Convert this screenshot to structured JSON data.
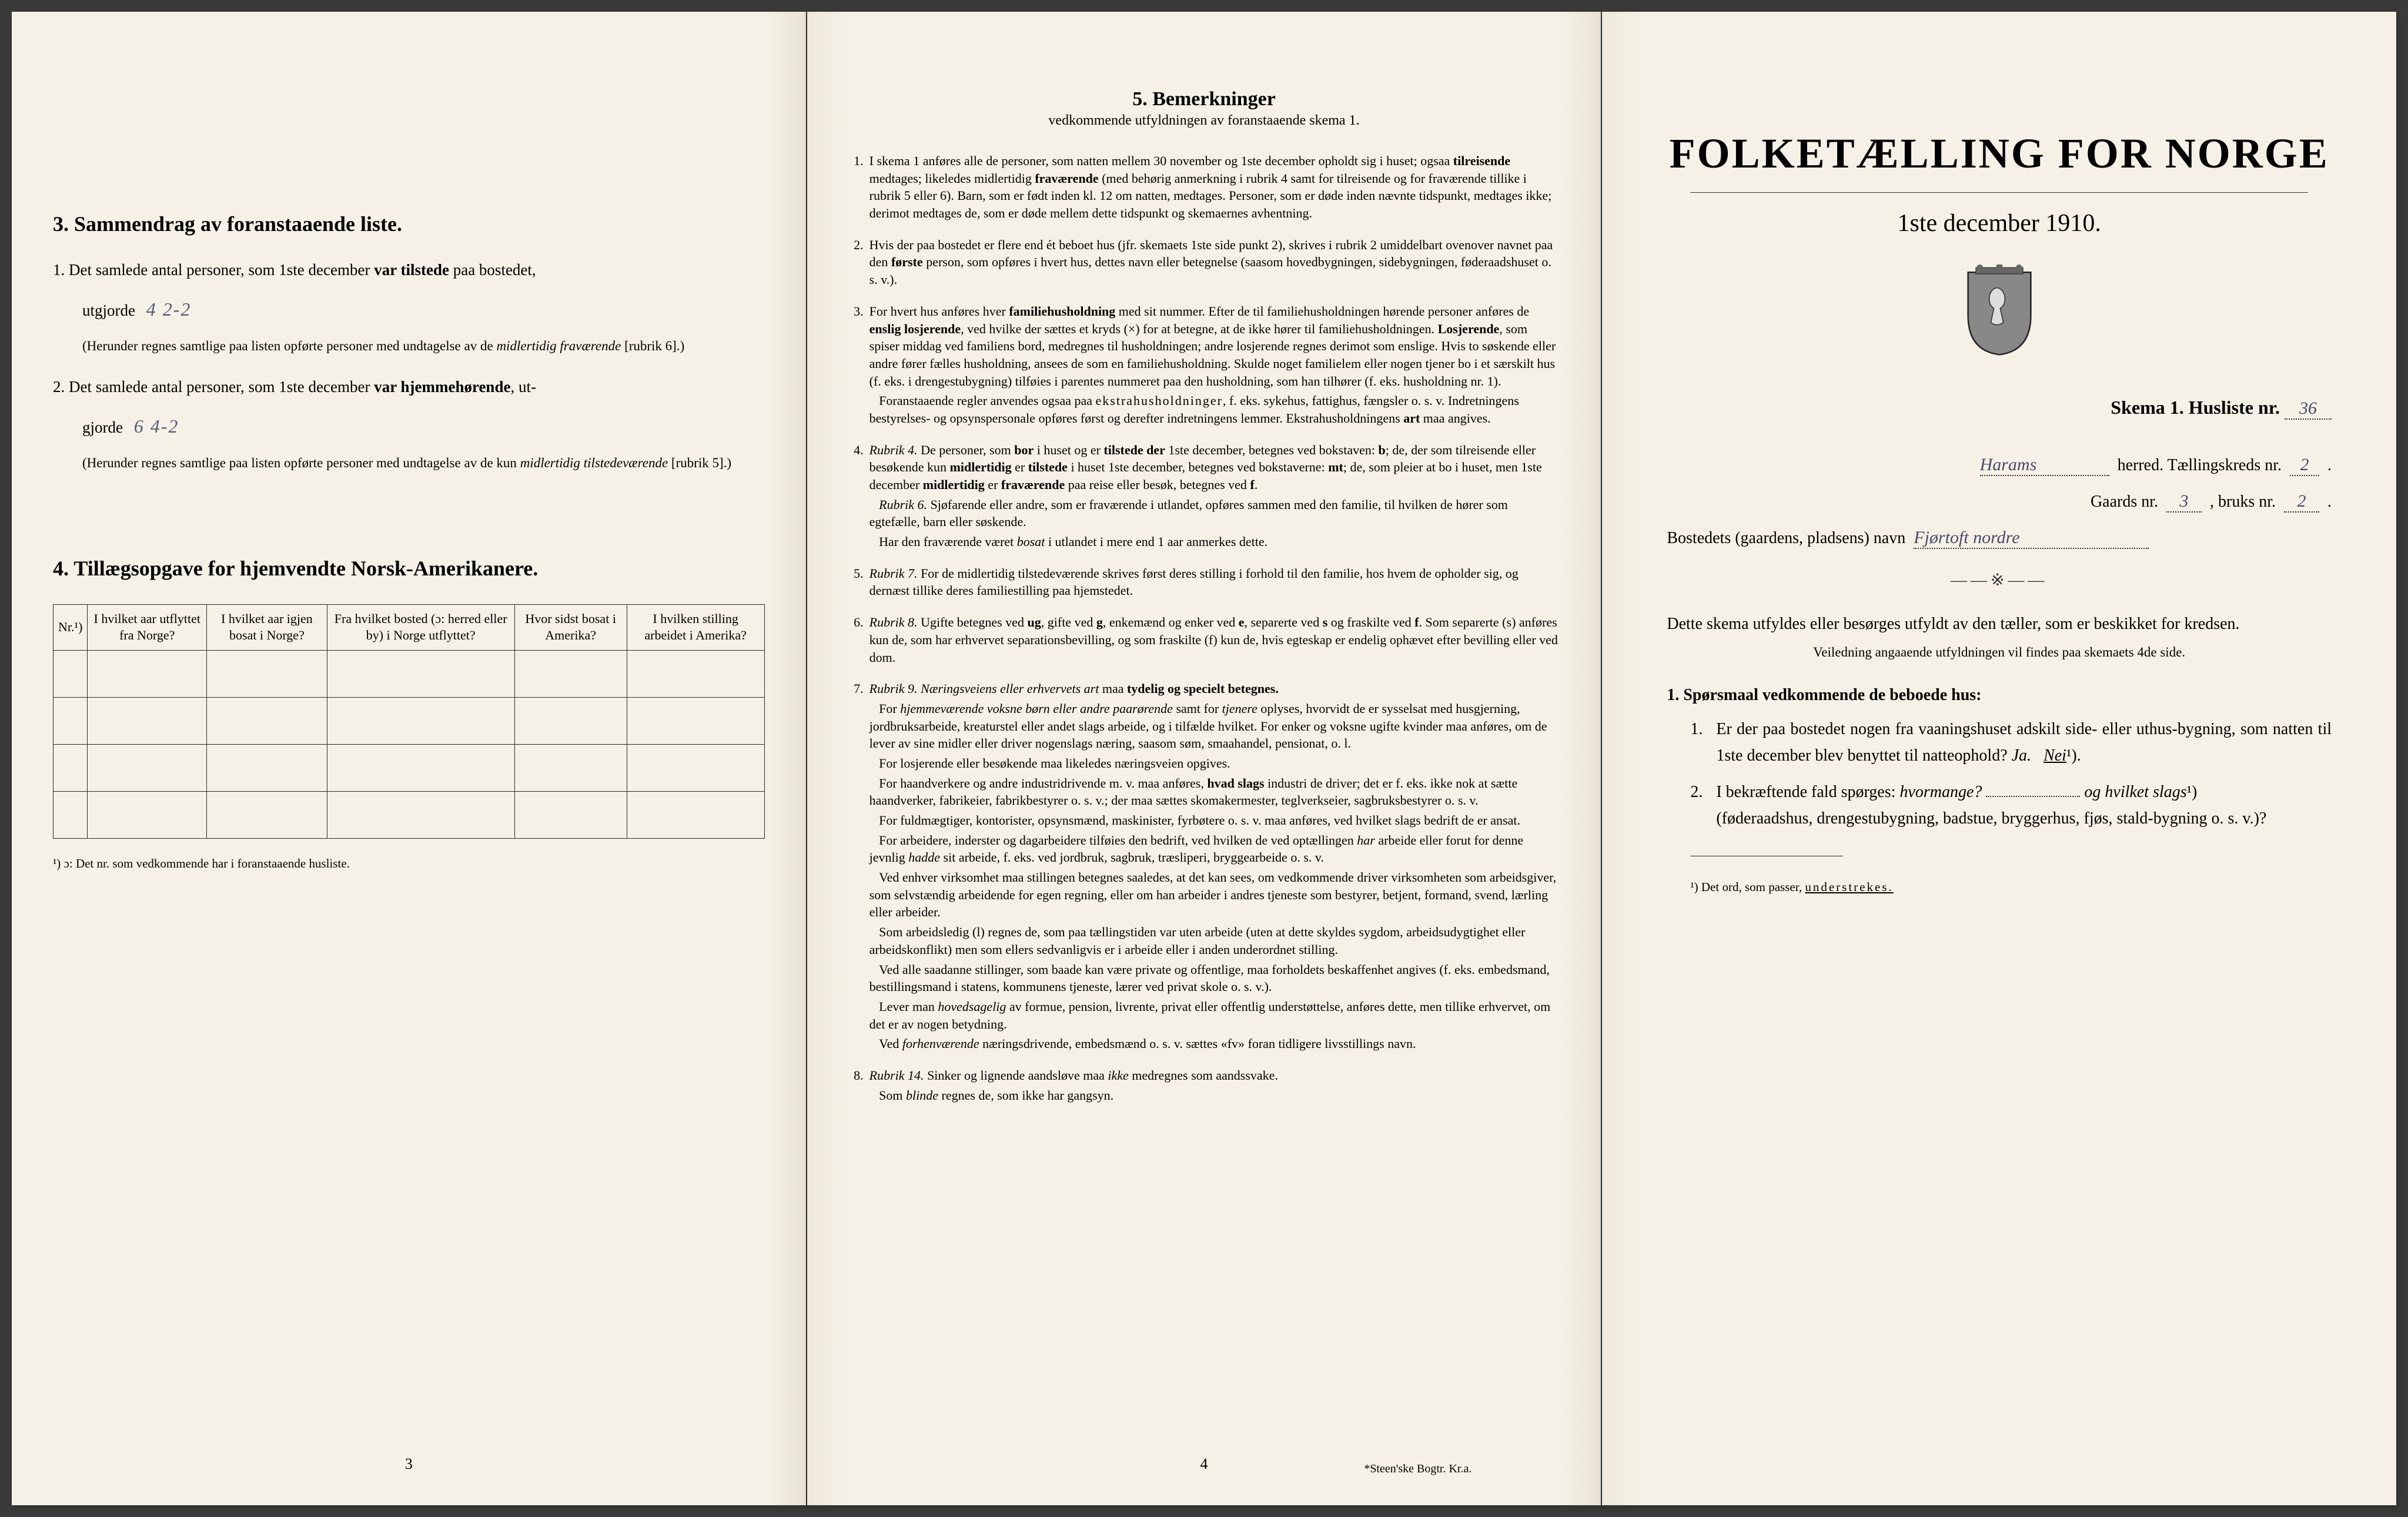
{
  "page_left": {
    "section3": {
      "title": "3.   Sammendrag av foranstaaende liste.",
      "item1_pre": "1.  Det samlede antal personer, som 1ste december ",
      "item1_bold": "var tilstede",
      "item1_post": " paa bostedet,",
      "item1_line2": "utgjorde",
      "item1_hand": "4  2-2",
      "item1_note_a": "(Herunder regnes samtlige paa listen opførte personer med undtagelse av de ",
      "item1_note_b": "midlertidig fraværende",
      "item1_note_c": " [rubrik 6].)",
      "item2_pre": "2.  Det samlede antal personer, som 1ste december ",
      "item2_bold": "var hjemmehørende",
      "item2_post": ", ut-",
      "item2_line2": "gjorde",
      "item2_hand": "6   4-2",
      "item2_note_a": "(Herunder regnes samtlige paa listen opførte personer med undtagelse av de kun ",
      "item2_note_b": "midlertidig tilstedeværende",
      "item2_note_c": " [rubrik 5].)"
    },
    "section4": {
      "title": "4.   Tillægsopgave for hjemvendte Norsk-Amerikanere.",
      "headers": [
        "Nr.¹)",
        "I hvilket aar utflyttet fra Norge?",
        "I hvilket aar igjen bosat i Norge?",
        "Fra hvilket bosted (ɔ: herred eller by) i Norge utflyttet?",
        "Hvor sidst bosat i Amerika?",
        "I hvilken stilling arbeidet i Amerika?"
      ],
      "rows": 4,
      "footnote": "¹) ɔ: Det nr. som vedkommende har i foranstaaende husliste."
    },
    "page_num": "3"
  },
  "page_mid": {
    "title": "5.   Bemerkninger",
    "subtitle": "vedkommende utfyldningen av foranstaaende skema 1.",
    "items": [
      {
        "n": "1.",
        "body": [
          "I skema 1 anføres alle de personer, som natten mellem 30 november og 1ste december opholdt sig i huset; ogsaa <b>tilreisende</b> medtages; likeledes midlertidig <b>fraværende</b> (med behørig anmerkning i rubrik 4 samt for tilreisende og for fraværende tillike i rubrik 5 eller 6). Barn, som er født inden kl. 12 om natten, medtages. Personer, som er døde inden nævnte tidspunkt, medtages ikke; derimot medtages de, som er døde mellem dette tidspunkt og skemaernes avhentning."
        ]
      },
      {
        "n": "2.",
        "body": [
          "Hvis der paa bostedet er flere end ét beboet hus (jfr. skemaets 1ste side punkt 2), skrives i rubrik 2 umiddelbart ovenover navnet paa den <b>første</b> person, som opføres i hvert hus, dettes navn eller betegnelse (saasom hovedbygningen, sidebygningen, føderaadshuset o. s. v.)."
        ]
      },
      {
        "n": "3.",
        "body": [
          "For hvert hus anføres hver <b>familiehusholdning</b> med sit nummer. Efter de til familiehusholdningen hørende personer anføres de <b>enslig losjerende</b>, ved hvilke der sættes et kryds (×) for at betegne, at de ikke hører til familiehusholdningen. <b>Losjerende</b>, som spiser middag ved familiens bord, medregnes til husholdningen; andre losjerende regnes derimot som enslige. Hvis to søskende eller andre fører fælles husholdning, ansees de som en familiehusholdning. Skulde noget familielem eller nogen tjener bo i et særskilt hus (f. eks. i drengestubygning) tilføies i parentes nummeret paa den husholdning, som han tilhører (f. eks. husholdning nr. 1).",
          "&nbsp;&nbsp;&nbsp;Foranstaaende regler anvendes ogsaa paa <span class='spaced'>ekstrahusholdninger</span>, f. eks. sykehus, fattighus, fængsler o. s. v. Indretningens bestyrelses- og opsynspersonale opføres først og derefter indretningens lemmer. Ekstrahusholdningens <b>art</b> maa angives."
        ]
      },
      {
        "n": "4.",
        "body": [
          "<i>Rubrik 4.</i> De personer, som <b>bor</b> i huset og er <b>tilstede der</b> 1ste december, betegnes ved bokstaven: <b>b</b>; de, der som tilreisende eller besøkende kun <b>midlertidig</b> er <b>tilstede</b> i huset 1ste december, betegnes ved bokstaverne: <b>mt</b>; de, som pleier at bo i huset, men 1ste december <b>midlertidig</b> er <b>fraværende</b> paa reise eller besøk, betegnes ved <b>f</b>.",
          "&nbsp;&nbsp;&nbsp;<i>Rubrik 6.</i> Sjøfarende eller andre, som er fraværende i utlandet, opføres sammen med den familie, til hvilken de hører som egtefælle, barn eller søskende.",
          "&nbsp;&nbsp;&nbsp;Har den fraværende været <i>bosat</i> i utlandet i mere end 1 aar anmerkes dette."
        ]
      },
      {
        "n": "5.",
        "body": [
          "<i>Rubrik 7.</i> For de midlertidig tilstedeværende skrives først deres stilling i forhold til den familie, hos hvem de opholder sig, og dernæst tillike deres familiestilling paa hjemstedet."
        ]
      },
      {
        "n": "6.",
        "body": [
          "<i>Rubrik 8.</i> Ugifte betegnes ved <b>ug</b>, gifte ved <b>g</b>, enkemænd og enker ved <b>e</b>, separerte ved <b>s</b> og fraskilte ved <b>f</b>. Som separerte (s) anføres kun de, som har erhvervet separationsbevilling, og som fraskilte (f) kun de, hvis egteskap er endelig ophævet efter bevilling eller ved dom."
        ]
      },
      {
        "n": "7.",
        "body": [
          "<i>Rubrik 9.</i> <i>Næringsveiens eller erhvervets art</i> maa <b>tydelig og specielt betegnes.</b>",
          "&nbsp;&nbsp;&nbsp;For <i>hjemmeværende voksne børn eller andre paarørende</i> samt for <i>tjenere</i> oplyses, hvorvidt de er sysselsat med husgjerning, jordbruksarbeide, kreaturstel eller andet slags arbeide, og i tilfælde hvilket. For enker og voksne ugifte kvinder maa anføres, om de lever av sine midler eller driver nogenslags næring, saasom søm, smaahandel, pensionat, o. l.",
          "&nbsp;&nbsp;&nbsp;For losjerende eller besøkende maa likeledes næringsveien opgives.",
          "&nbsp;&nbsp;&nbsp;For haandverkere og andre industridrivende m. v. maa anføres, <b>hvad slags</b> industri de driver; det er f. eks. ikke nok at sætte haandverker, fabrikeier, fabrikbestyrer o. s. v.; der maa sættes skomakermester, teglverkseier, sagbruksbestyrer o. s. v.",
          "&nbsp;&nbsp;&nbsp;For fuldmægtiger, kontorister, opsynsmænd, maskinister, fyrbøtere o. s. v. maa anføres, ved hvilket slags bedrift de er ansat.",
          "&nbsp;&nbsp;&nbsp;For arbeidere, inderster og dagarbeidere tilføies den bedrift, ved hvilken de ved optællingen <i>har</i> arbeide eller forut for denne jevnlig <i>hadde</i> sit arbeide, f. eks. ved jordbruk, sagbruk, træsliperi, bryggearbeide o. s. v.",
          "&nbsp;&nbsp;&nbsp;Ved enhver virksomhet maa stillingen betegnes saaledes, at det kan sees, om vedkommende driver virksomheten som arbeidsgiver, som selvstændig arbeidende for egen regning, eller om han arbeider i andres tjeneste som bestyrer, betjent, formand, svend, lærling eller arbeider.",
          "&nbsp;&nbsp;&nbsp;Som arbeidsledig (l) regnes de, som paa tællingstiden var uten arbeide (uten at dette skyldes sygdom, arbeidsudygtighet eller arbeidskonflikt) men som ellers sedvanligvis er i arbeide eller i anden underordnet stilling.",
          "&nbsp;&nbsp;&nbsp;Ved alle saadanne stillinger, som baade kan være private og offentlige, maa forholdets beskaffenhet angives (f. eks. embedsmand, bestillingsmand i statens, kommunens tjeneste, lærer ved privat skole o. s. v.).",
          "&nbsp;&nbsp;&nbsp;Lever man <i>hovedsagelig</i> av formue, pension, livrente, privat eller offentlig understøttelse, anføres dette, men tillike erhvervet, om det er av nogen betydning.",
          "&nbsp;&nbsp;&nbsp;Ved <i>forhenværende</i> næringsdrivende, embedsmænd o. s. v. sættes «fv» foran tidligere livsstillings navn."
        ]
      },
      {
        "n": "8.",
        "body": [
          "<i>Rubrik 14.</i> Sinker og lignende aandsløve maa <i>ikke</i> medregnes som aandssvake.",
          "&nbsp;&nbsp;&nbsp;Som <i>blinde</i> regnes de, som ikke har gangsyn."
        ]
      }
    ],
    "page_num": "4",
    "printer": "*Steen'ske Bogtr. Kr.a."
  },
  "page_right": {
    "title": "FOLKETÆLLING FOR NORGE",
    "subtitle": "1ste december 1910.",
    "skema_label": "Skema 1.   Husliste nr.",
    "skema_val": "36",
    "herred_hand": "Harams",
    "herred_label": "herred.   Tællingskreds nr.",
    "kreds_val": "2",
    "gaard_label_a": "Gaards nr.",
    "gaard_val": "3",
    "gaard_label_b": ", bruks nr.",
    "bruks_val": "2",
    "bosted_label": "Bostedets (gaardens, pladsens) navn",
    "bosted_hand": "Fjørtoft nordre",
    "instr": "Dette skema utfyldes eller besørges utfyldt av den tæller, som er beskikket for kredsen.",
    "instr_sub": "Veiledning angaaende utfyldningen vil findes paa skemaets 4de side.",
    "q_head": "1. Spørsmaal vedkommende de beboede hus:",
    "q1_num": "1.",
    "q1": "Er der paa bostedet nogen fra vaaningshuset adskilt side- eller uthus-bygning, som natten til 1ste december blev benyttet til natteophold?   ",
    "q1_ja": "Ja.",
    "q1_nei": "Nei",
    "q1_sup": "¹).",
    "q2_num": "2.",
    "q2_a": "I bekræftende fald spørges: ",
    "q2_b": "hvormange?",
    "q2_c": "og hvilket slags",
    "q2_sup": "¹)",
    "q2_d": "(føderaadshus, drengestubygning, badstue, bryggerhus, fjøs, stald-bygning o. s. v.)?",
    "footnote": "¹) Det ord, som passer, ",
    "footnote_u": "understrekes."
  }
}
